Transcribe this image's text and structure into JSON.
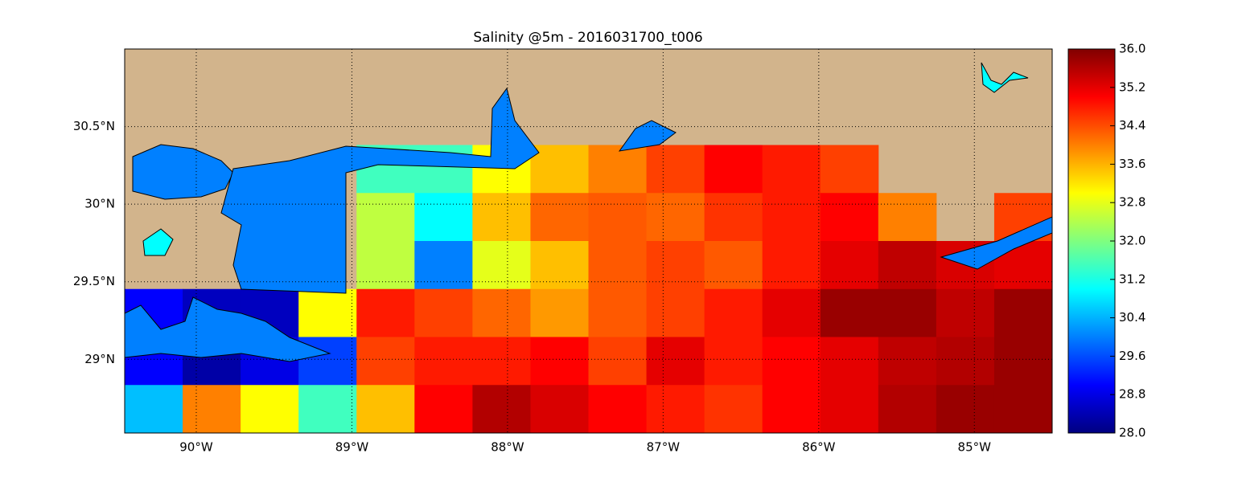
{
  "map": {
    "title": "Salinity @5m - 2016031700_t006",
    "xlim": [
      -90.46,
      -84.5
    ],
    "ylim": [
      28.525,
      31.0
    ],
    "xticks": [
      {
        "value": -90,
        "label": "90°W"
      },
      {
        "value": -89,
        "label": "89°W"
      },
      {
        "value": -88,
        "label": "88°W"
      },
      {
        "value": -87,
        "label": "87°W"
      },
      {
        "value": -86,
        "label": "86°W"
      },
      {
        "value": -85,
        "label": "85°W"
      }
    ],
    "yticks": [
      {
        "value": 30.5,
        "label": "30.5°N"
      },
      {
        "value": 30,
        "label": "30°N"
      },
      {
        "value": 29.5,
        "label": "29.5°N"
      },
      {
        "value": 29,
        "label": "29°N"
      }
    ],
    "grid": true,
    "land_color": "#d2b48c",
    "values": [
      [
        null,
        null,
        null,
        null,
        null,
        null,
        null,
        null,
        null,
        null,
        null,
        null,
        null,
        null,
        null,
        null
      ],
      [
        null,
        null,
        null,
        null,
        null,
        null,
        null,
        null,
        null,
        null,
        null,
        null,
        null,
        null,
        null,
        null
      ],
      [
        null,
        null,
        null,
        null,
        31.5,
        31.5,
        33,
        33.5,
        34,
        34.5,
        35,
        34.8,
        34.5,
        null,
        null,
        null
      ],
      [
        null,
        null,
        null,
        null,
        32.5,
        31,
        33.5,
        34.2,
        34.3,
        34.2,
        34.6,
        34.8,
        35,
        34,
        null,
        34.5
      ],
      [
        null,
        null,
        null,
        null,
        32.5,
        30,
        32.8,
        33.5,
        34.3,
        34.5,
        34.3,
        34.8,
        35.2,
        35.5,
        35.3,
        35.2
      ],
      [
        29,
        28.5,
        28.5,
        33,
        34.8,
        34.5,
        34.2,
        33.8,
        34.3,
        34.5,
        34.8,
        35.2,
        35.8,
        35.8,
        35.5,
        35.8
      ],
      [
        29,
        28.3,
        28.8,
        29.5,
        34.5,
        34.8,
        34.8,
        35,
        34.5,
        35.2,
        34.8,
        35,
        35.2,
        35.5,
        35.6,
        35.8
      ],
      [
        30.5,
        34,
        33,
        31.5,
        33.5,
        35,
        35.6,
        35.3,
        35,
        34.8,
        34.6,
        35,
        35.2,
        35.6,
        35.8,
        35.8
      ]
    ],
    "colorbar": {
      "lim": [
        28,
        36
      ],
      "ticks": [
        {
          "value": 28,
          "label": "28.0"
        },
        {
          "value": 28.8,
          "label": "28.8"
        },
        {
          "value": 29.6,
          "label": "29.6"
        },
        {
          "value": 30.4,
          "label": "30.4"
        },
        {
          "value": 31.2,
          "label": "31.2"
        },
        {
          "value": 32,
          "label": "32.0"
        },
        {
          "value": 32.8,
          "label": "32.8"
        },
        {
          "value": 33.6,
          "label": "33.6"
        },
        {
          "value": 34.4,
          "label": "34.4"
        },
        {
          "value": 35.2,
          "label": "35.2"
        },
        {
          "value": 36,
          "label": "36.0"
        }
      ]
    }
  }
}
